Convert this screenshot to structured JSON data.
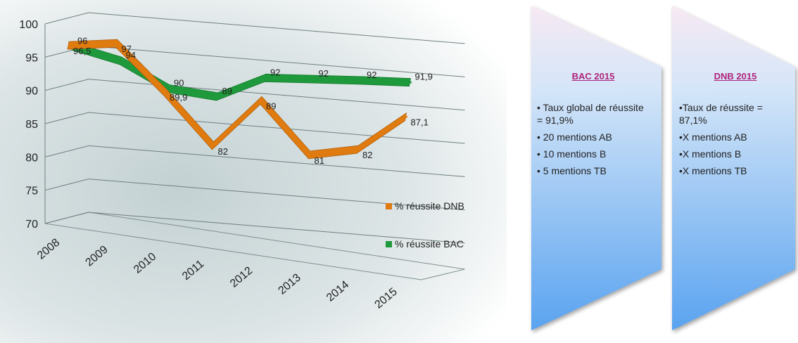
{
  "chart_data": {
    "type": "line",
    "categories": [
      "2008",
      "2009",
      "2010",
      "2011",
      "2012",
      "2013",
      "2014",
      "2015"
    ],
    "ylim": [
      70,
      100
    ],
    "yticks": [
      "70",
      "75",
      "80",
      "85",
      "90",
      "95",
      "100"
    ],
    "grid": true,
    "legend_position": "right",
    "series": [
      {
        "name": "% réussite DNB",
        "color": "#e07b10",
        "values": [
          96.5,
          97,
          89.9,
          82,
          89,
          81,
          82,
          87.1
        ],
        "labels": [
          "96,5",
          "97",
          "89,9",
          "82",
          "89",
          "81",
          "82",
          "87,1"
        ]
      },
      {
        "name": "% réussite BAC",
        "color": "#1e9a3c",
        "values": [
          96,
          94,
          90,
          89,
          92,
          92,
          92,
          91.9
        ],
        "labels": [
          "96",
          "94",
          "90",
          "89",
          "92",
          "92",
          "92",
          "91,9"
        ]
      }
    ]
  },
  "panels": {
    "bac": {
      "title": "BAC 2015",
      "title_color": "#b0237a",
      "items": [
        "• Taux global de réussite = 91,9%",
        "• 20 mentions AB",
        "• 10 mentions B",
        "• 5 mentions TB"
      ]
    },
    "dnb": {
      "title": "DNB 2015",
      "title_color": "#b0237a",
      "items": [
        "•Taux de réussite = 87,1%",
        "•X mentions AB",
        "•X mentions B",
        "•X mentions TB"
      ]
    }
  }
}
